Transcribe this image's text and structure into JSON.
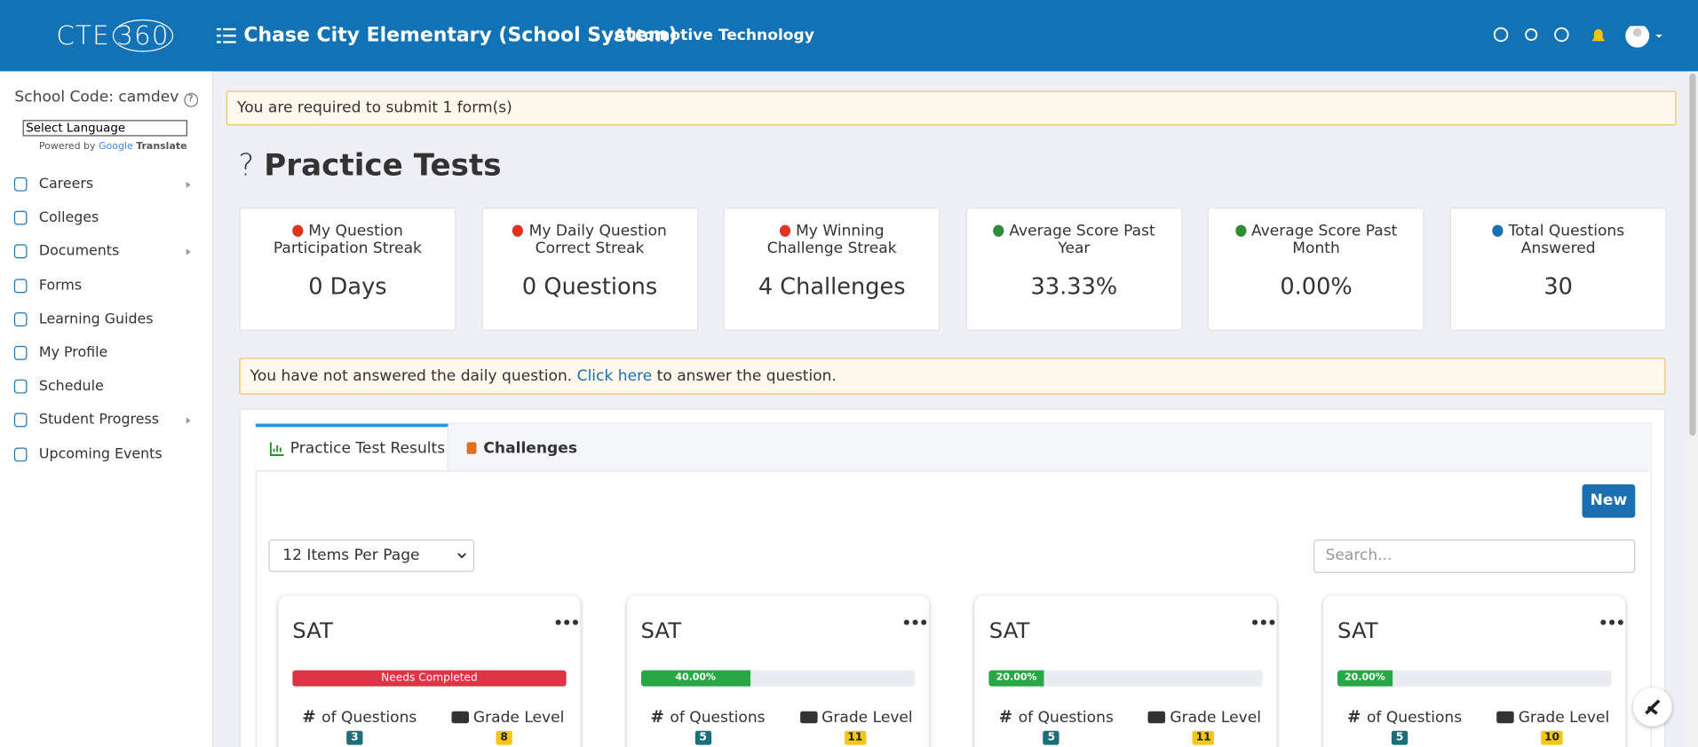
{
  "header": {
    "logo_left": "CTE",
    "logo_right": "360",
    "school": "Chase City Elementary (School System)",
    "program": "Automotive Technology"
  },
  "sidebar": {
    "school_code": "School Code: camdev",
    "language": "Select Language",
    "powered_by": "Powered by",
    "google": "Google",
    "translate": "Translate",
    "nav": [
      {
        "label": "Careers",
        "submenu": true
      },
      {
        "label": "Colleges",
        "submenu": false
      },
      {
        "label": "Documents",
        "submenu": true
      },
      {
        "label": "Forms",
        "submenu": false
      },
      {
        "label": "Learning Guides",
        "submenu": false
      },
      {
        "label": "My Profile",
        "submenu": false
      },
      {
        "label": "Schedule",
        "submenu": false
      },
      {
        "label": "Student Progress",
        "submenu": true
      },
      {
        "label": "Upcoming Events",
        "submenu": false
      }
    ]
  },
  "alert": "You are required to submit 1 form(s)",
  "page": {
    "icon": "?",
    "title": "Practice Tests"
  },
  "stats": [
    {
      "label": "My Question Participation Streak",
      "value": "0 Days",
      "icon": "fire"
    },
    {
      "label": "My Daily Question Correct Streak",
      "value": "0 Questions",
      "icon": "fire"
    },
    {
      "label": "My Winning Challenge Streak",
      "value": "4 Challenges",
      "icon": "fire"
    },
    {
      "label": "Average Score Past Year",
      "value": "33.33%",
      "icon": "history"
    },
    {
      "label": "Average Score Past Month",
      "value": "0.00%",
      "icon": "history"
    },
    {
      "label": "Total Questions Answered",
      "value": "30",
      "icon": "question"
    }
  ],
  "daily": {
    "before": "You have not answered the daily question.",
    "link": "Click here",
    "after": "to answer the question."
  },
  "tabs": [
    "Practice Test Results",
    "Challenges"
  ],
  "new_button": "New",
  "per_page": "12 Items Per Page",
  "search_placeholder": "Search...",
  "card_labels": {
    "questions_icon": "#",
    "questions": "of Questions",
    "grade": "Grade Level"
  },
  "cards": [
    {
      "title": "SAT",
      "status": "Needs Completed",
      "progress": null,
      "questions": "3",
      "grade": "8"
    },
    {
      "title": "SAT",
      "progress": {
        "value": 40,
        "label": "40.00%"
      },
      "questions": "5",
      "grade": "11"
    },
    {
      "title": "SAT",
      "progress": {
        "value": 20,
        "label": "20.00%"
      },
      "questions": "5",
      "grade": "11"
    },
    {
      "title": "SAT",
      "progress": {
        "value": 20,
        "label": "20.00%"
      },
      "questions": "5",
      "grade": "10"
    }
  ]
}
